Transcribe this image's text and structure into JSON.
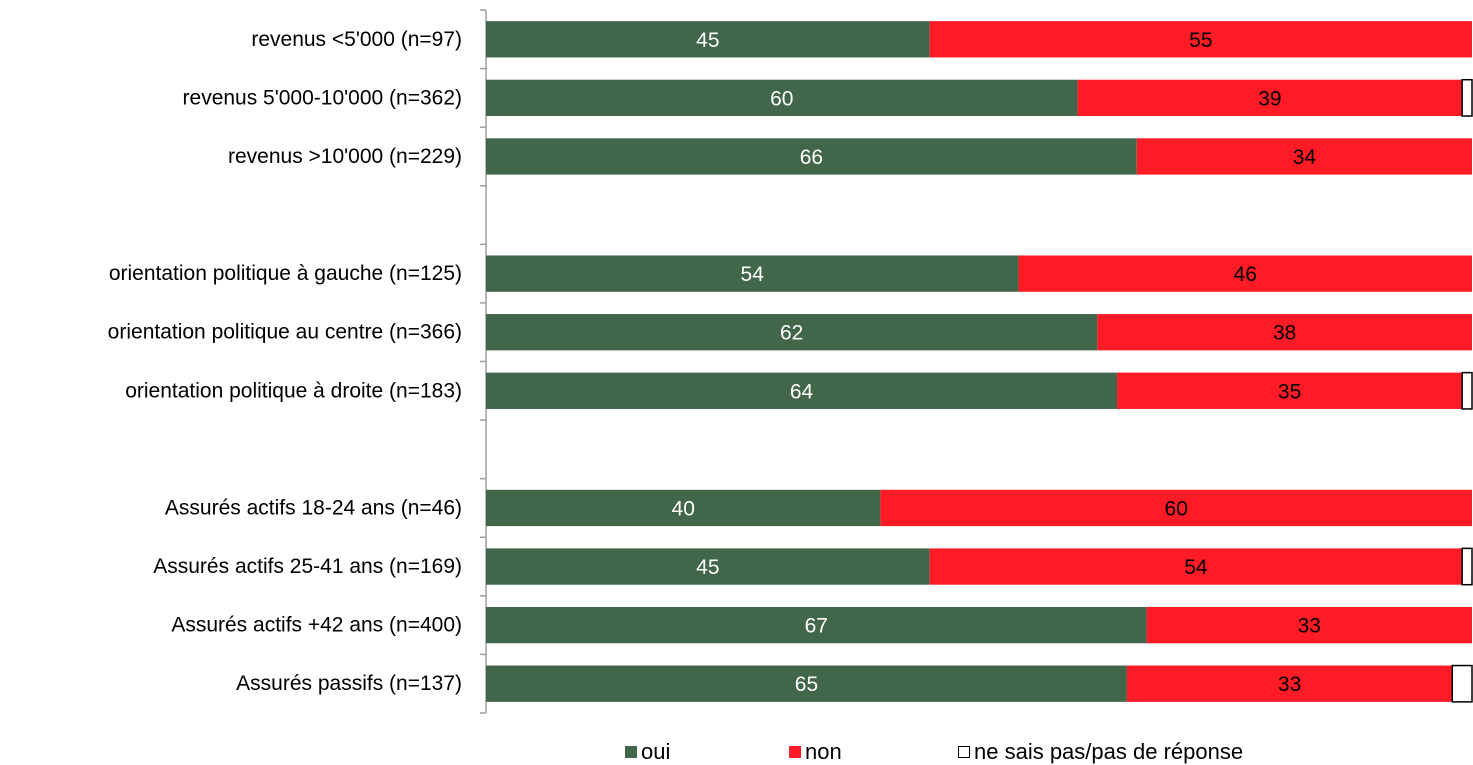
{
  "chart_data": {
    "type": "bar",
    "orientation": "horizontal",
    "stacked": true,
    "categories": [
      "revenus <5'000 (n=97)",
      "revenus 5'000-10'000 (n=362)",
      "revenus >10'000 (n=229)",
      "",
      "orientation politique à gauche (n=125)",
      "orientation politique au centre (n=366)",
      "orientation politique à droite (n=183)",
      "",
      "Assurés actifs 18-24 ans (n=46)",
      "Assurés actifs 25-41 ans (n=169)",
      "Assurés actifs +42 ans (n=400)",
      "Assurés passifs (n=137)"
    ],
    "series": [
      {
        "name": "oui",
        "color": "#41664a",
        "label_color": "#ffffff",
        "values": [
          45,
          60,
          66,
          null,
          54,
          62,
          64,
          null,
          40,
          45,
          67,
          65
        ]
      },
      {
        "name": "non",
        "color": "#ff1b26",
        "label_color": "#000000",
        "values": [
          55,
          39,
          34,
          null,
          46,
          38,
          35,
          null,
          60,
          54,
          33,
          33
        ]
      },
      {
        "name": "ne sais pas/pas de réponse",
        "color": "#ffffff",
        "border": "#000000",
        "values": [
          0,
          1,
          0,
          null,
          0,
          0,
          1,
          null,
          0,
          1,
          0,
          2
        ]
      }
    ],
    "xlim": [
      0,
      100
    ],
    "grid": false,
    "legend_position": "bottom",
    "title": "",
    "xlabel": "",
    "ylabel": ""
  }
}
